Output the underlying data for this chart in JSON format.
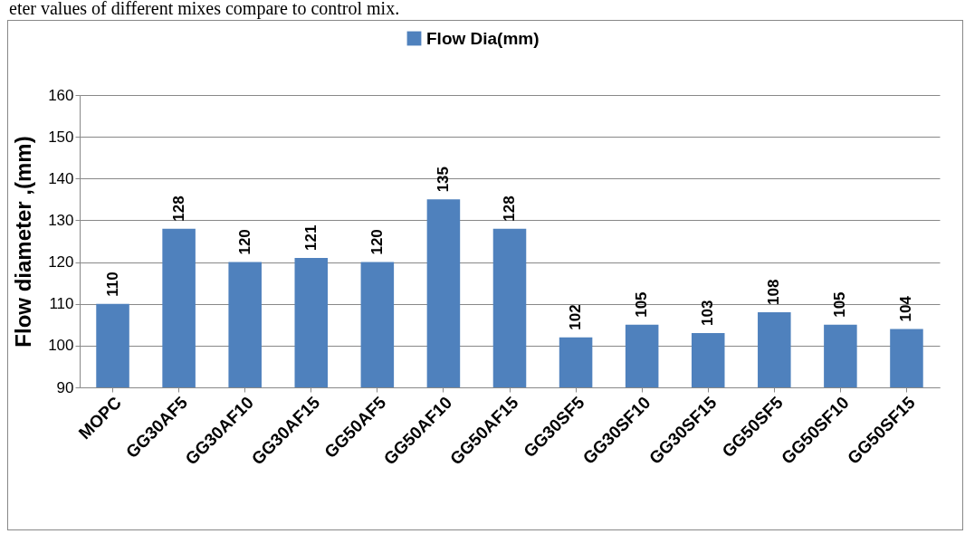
{
  "chart_data": {
    "type": "bar",
    "annotations": [
      "eter  values of different mixes  compare to control mix."
    ],
    "categories": [
      "MOPC",
      "GG30AF5",
      "GG30AF10",
      "GG30AF15",
      "GG50AF5",
      "GG50AF10",
      "GG50AF15",
      "GG30SF5",
      "GG30SF10",
      "GG30SF15",
      "GG50SF5",
      "GG50SF10",
      "GG50SF15"
    ],
    "series": [
      {
        "name": "Flow Dia(mm)",
        "color": "#4f81bd",
        "values": [
          110,
          128,
          120,
          121,
          120,
          135,
          128,
          102,
          105,
          103,
          108,
          105,
          104
        ]
      }
    ],
    "ylabel": "Flow diameter ,(mm)",
    "ylim": [
      90,
      160
    ],
    "yticks": [
      90,
      100,
      110,
      120,
      130,
      140,
      150,
      160
    ],
    "grid": "y",
    "legend": "top",
    "data_labels": true
  }
}
